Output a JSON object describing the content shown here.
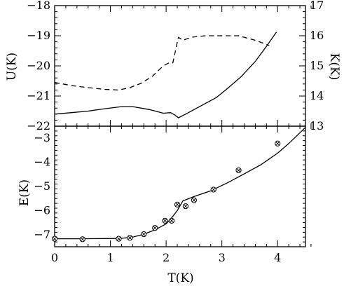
{
  "chart_data": [
    {
      "type": "line",
      "panel": "top",
      "xlabel": "",
      "ylabel": "U(K)",
      "y2label": "K(K)",
      "xlim": [
        0,
        4.5
      ],
      "ylim": [
        -22,
        -18
      ],
      "y2lim": [
        13,
        17
      ],
      "yticks": [
        -22,
        -21,
        -20,
        -19,
        -18
      ],
      "y2ticks": [
        13,
        14,
        15,
        16,
        17
      ],
      "xticks": [
        0,
        1,
        2,
        3,
        4
      ],
      "xticklabels_shown": false,
      "grid": false,
      "series": [
        {
          "axis": "left",
          "style": "solid",
          "x": [
            0.0,
            0.3,
            0.6,
            0.9,
            1.2,
            1.4,
            1.7,
            1.95,
            2.08,
            2.15,
            2.22,
            2.35,
            2.5,
            2.7,
            2.9,
            3.1,
            3.35,
            3.6,
            3.8,
            3.98
          ],
          "y": [
            -21.6,
            -21.55,
            -21.5,
            -21.42,
            -21.35,
            -21.35,
            -21.45,
            -21.57,
            -21.55,
            -21.62,
            -21.72,
            -21.6,
            -21.45,
            -21.25,
            -21.05,
            -20.75,
            -20.35,
            -19.85,
            -19.35,
            -18.88
          ]
        },
        {
          "axis": "right",
          "style": "dashed",
          "x": [
            0.0,
            0.3,
            0.6,
            0.9,
            1.15,
            1.35,
            1.55,
            1.75,
            1.95,
            2.05,
            2.12,
            2.22,
            2.3,
            2.45,
            2.7,
            3.0,
            3.3,
            3.6,
            3.85
          ],
          "y": [
            14.45,
            14.35,
            14.28,
            14.22,
            14.2,
            14.28,
            14.42,
            14.65,
            15.0,
            15.1,
            15.1,
            15.95,
            15.85,
            15.95,
            16.0,
            16.0,
            16.0,
            15.85,
            15.68
          ]
        }
      ]
    },
    {
      "type": "line",
      "panel": "bottom",
      "xlabel": "T(K)",
      "ylabel": "E(K)",
      "xlim": [
        0,
        4.5
      ],
      "ylim": [
        -7.5,
        -2.5
      ],
      "xticks": [
        0,
        1,
        2,
        3,
        4
      ],
      "yticks": [
        -7,
        -6,
        -5,
        -4,
        -3
      ],
      "grid": false,
      "series": [
        {
          "style": "solid",
          "x": [
            0.0,
            0.5,
            1.0,
            1.2,
            1.4,
            1.6,
            1.8,
            2.0,
            2.1,
            2.2,
            2.3,
            2.5,
            2.8,
            3.1,
            3.4,
            3.7,
            4.0,
            4.2,
            4.5
          ],
          "y": [
            -7.17,
            -7.17,
            -7.16,
            -7.15,
            -7.1,
            -6.98,
            -6.8,
            -6.55,
            -6.3,
            -6.0,
            -5.6,
            -5.42,
            -5.18,
            -4.85,
            -4.48,
            -4.1,
            -3.62,
            -3.22,
            -2.55
          ]
        },
        {
          "style": "markers",
          "marker": "circle-cross",
          "x": [
            0.0,
            0.5,
            1.15,
            1.35,
            1.6,
            1.8,
            1.98,
            2.1,
            2.2,
            2.35,
            2.5,
            2.85,
            3.3,
            4.0
          ],
          "y": [
            -7.17,
            -7.19,
            -7.17,
            -7.13,
            -6.98,
            -6.72,
            -6.42,
            -6.42,
            -5.75,
            -5.82,
            -5.57,
            -5.13,
            -4.33,
            -3.22
          ]
        }
      ]
    }
  ]
}
